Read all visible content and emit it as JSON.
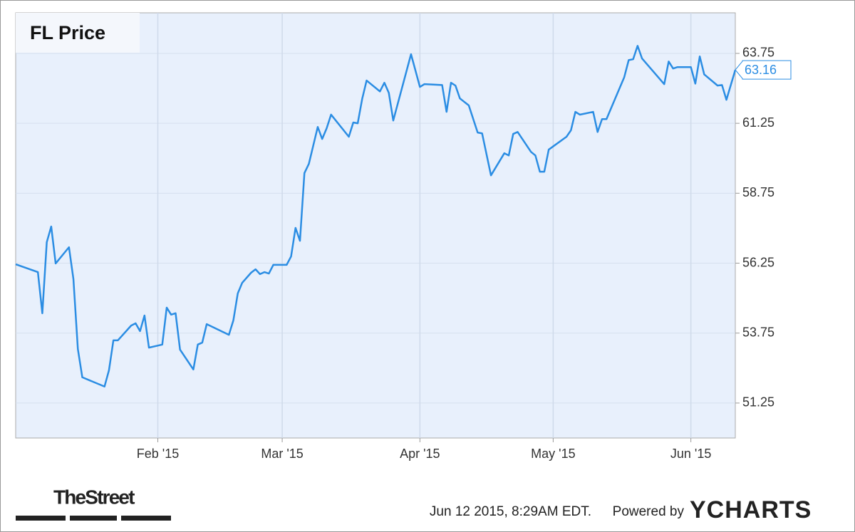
{
  "chart_data": {
    "type": "line",
    "title": "FL Price",
    "x": [
      0,
      5,
      6,
      7,
      8,
      9,
      12,
      13,
      14,
      15,
      20,
      21,
      22,
      23,
      26,
      27,
      28,
      29,
      30,
      33,
      34,
      35,
      36,
      37,
      40,
      41,
      42,
      43,
      48,
      49,
      50,
      51,
      53,
      54,
      55,
      56,
      57,
      58,
      61,
      62,
      63,
      64,
      65,
      66,
      68,
      69,
      70,
      71,
      75,
      76,
      77,
      78,
      79,
      82,
      83,
      84,
      85,
      89,
      91,
      92,
      96,
      97,
      98,
      99,
      100,
      102,
      104,
      105,
      107,
      110,
      111,
      112,
      113,
      116,
      117,
      118,
      119,
      120,
      124,
      125,
      126,
      127,
      130,
      131,
      132,
      133,
      137,
      138,
      139,
      140,
      141,
      146,
      147,
      148,
      149,
      152,
      153,
      154,
      155,
      158,
      159,
      160,
      162
    ],
    "series": [
      {
        "name": "FL Price",
        "color": "#2b8de3",
        "values": [
          56.21,
          55.93,
          54.46,
          57.0,
          57.56,
          56.24,
          56.82,
          55.68,
          53.18,
          52.17,
          51.84,
          52.42,
          53.49,
          53.49,
          54.02,
          54.1,
          53.82,
          54.38,
          53.23,
          53.34,
          54.66,
          54.41,
          54.46,
          53.16,
          52.45,
          53.34,
          53.41,
          54.07,
          53.69,
          54.2,
          55.17,
          55.55,
          55.91,
          56.03,
          55.86,
          55.93,
          55.88,
          56.19,
          56.19,
          56.49,
          57.51,
          57.05,
          59.47,
          59.8,
          61.12,
          60.69,
          61.07,
          61.56,
          60.77,
          61.28,
          61.25,
          62.12,
          62.78,
          62.39,
          62.7,
          62.34,
          61.35,
          63.72,
          62.55,
          62.65,
          62.62,
          61.66,
          62.7,
          62.6,
          62.14,
          61.89,
          60.92,
          60.89,
          59.39,
          60.18,
          60.1,
          60.87,
          60.94,
          60.23,
          60.1,
          59.52,
          59.52,
          60.31,
          60.77,
          61.0,
          61.66,
          61.56,
          61.66,
          60.94,
          61.4,
          61.4,
          62.9,
          63.51,
          63.54,
          64.02,
          63.57,
          62.65,
          63.46,
          63.21,
          63.26,
          63.26,
          62.67,
          63.64,
          63.0,
          62.6,
          62.62,
          62.09,
          63.16
        ]
      }
    ],
    "xlim": [
      0,
      162
    ],
    "xticks": [
      {
        "value": 32,
        "label": "Feb '15"
      },
      {
        "value": 60,
        "label": "Mar '15"
      },
      {
        "value": 91,
        "label": "Apr '15"
      },
      {
        "value": 121,
        "label": "May '15"
      },
      {
        "value": 152,
        "label": "Jun '15"
      }
    ],
    "ylim": [
      50.0,
      65.2
    ],
    "yticks": [
      51.25,
      53.75,
      56.25,
      58.75,
      61.25,
      63.75
    ],
    "grid": true,
    "source": "TheStreet",
    "timestamp": "Jun 12 2015, 8:29AM EDT.",
    "credit": "Powered by",
    "brand": "YCHARTS"
  }
}
